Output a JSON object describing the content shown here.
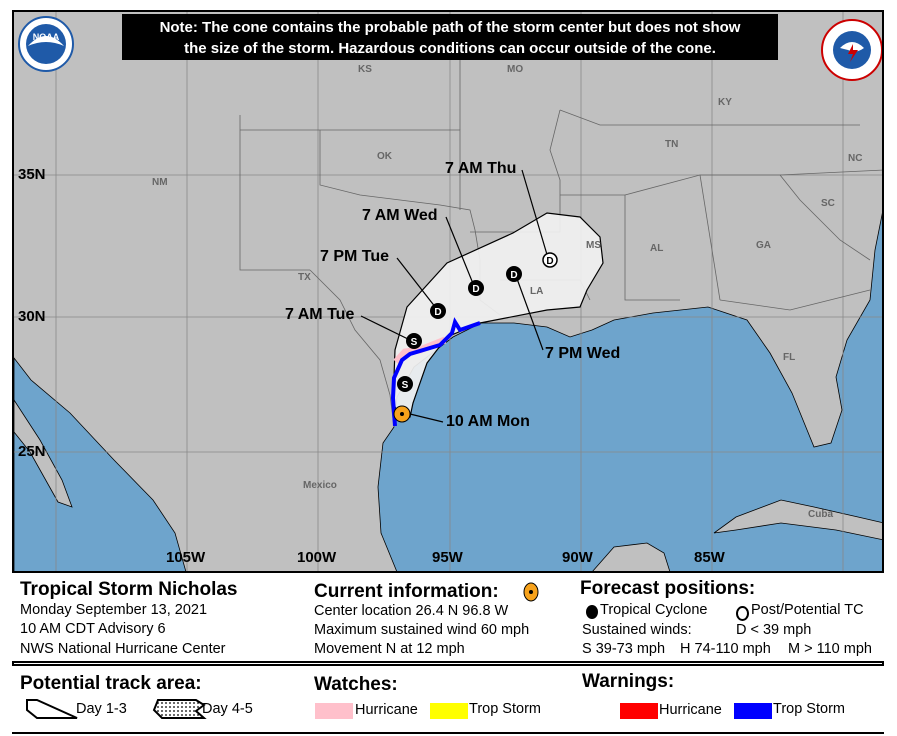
{
  "note": {
    "line1": "Note: The cone contains the probable path of the storm center but does not show",
    "line2": "the size of the storm. Hazardous conditions can occur outside of the cone."
  },
  "logos": {
    "left": "NOAA",
    "right": "NATIONAL WEATHER SERVICE"
  },
  "map": {
    "latitude_labels": [
      "35N",
      "30N",
      "25N"
    ],
    "longitude_labels": [
      "105W",
      "100W",
      "95W",
      "90W",
      "85W"
    ],
    "region_labels": [
      "KS",
      "MO",
      "KY",
      "OK",
      "TN",
      "NC",
      "NM",
      "SC",
      "MS",
      "GA",
      "AL",
      "TX",
      "LA",
      "FL",
      "Mexico",
      "Cuba"
    ],
    "forecast_points": [
      {
        "time": "10 AM Mon",
        "type": "current"
      },
      {
        "time": "",
        "type": "S"
      },
      {
        "time": "7 AM Tue",
        "type": "S"
      },
      {
        "time": "7 PM Tue",
        "type": "D"
      },
      {
        "time": "7 AM Wed",
        "type": "D"
      },
      {
        "time": "7 PM Wed",
        "type": "D"
      },
      {
        "time": "7 AM Thu",
        "type": "D-post"
      }
    ],
    "colors": {
      "land": "#c0c0c0",
      "water": "#6ea4cc",
      "cone": "#f0f0f0",
      "current": "#f7a21b",
      "ts_warning": "#0000ff",
      "hurricane_watch": "#ffc0cb"
    }
  },
  "info": {
    "storm_name": "Tropical Storm Nicholas",
    "date": "Monday September 13, 2021",
    "advisory": "10 AM CDT Advisory 6",
    "agency": "NWS National Hurricane Center",
    "current_heading": "Current information:",
    "center_location": "Center location 26.4 N 96.8 W",
    "max_wind": "Maximum sustained wind 60 mph",
    "movement": "Movement N at 12 mph",
    "forecast_heading": "Forecast positions:",
    "tropical_cyclone": "Tropical Cyclone",
    "post_potential": "Post/Potential TC",
    "sustained_winds": "Sustained winds:",
    "d_range": "D < 39 mph",
    "s_range": "S 39-73 mph",
    "h_range": "H 74-110 mph",
    "m_range": "M > 110 mph"
  },
  "legend": {
    "track_heading": "Potential track area:",
    "day13": "Day 1-3",
    "day45": "Day 4-5",
    "watches_heading": "Watches:",
    "watch_hurricane": "Hurricane",
    "watch_ts": "Trop Storm",
    "warnings_heading": "Warnings:",
    "warn_hurricane": "Hurricane",
    "warn_ts": "Trop Storm",
    "colors": {
      "watch_hurricane": "#ffc0cb",
      "watch_ts": "#ffff00",
      "warn_hurricane": "#ff0000",
      "warn_ts": "#0000ff"
    }
  }
}
